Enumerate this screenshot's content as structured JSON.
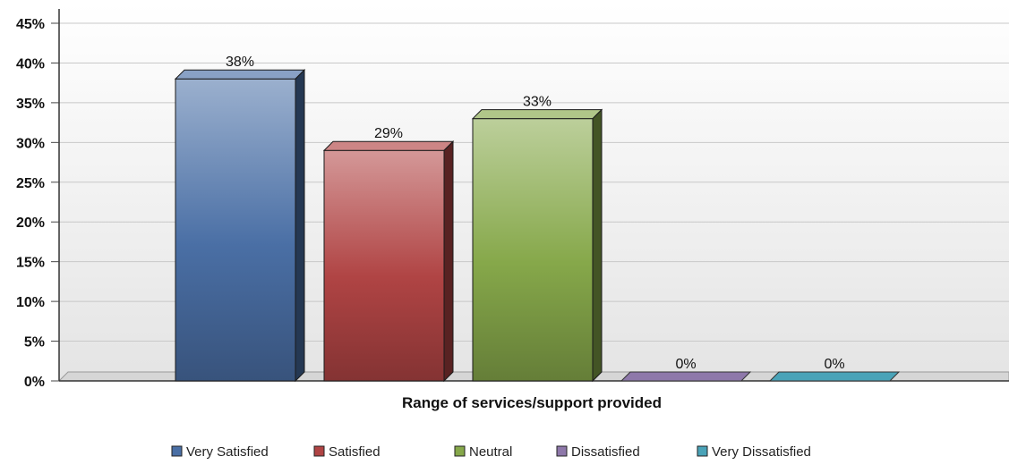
{
  "chart_data": {
    "type": "bar",
    "categories": [
      "Very Satisfied",
      "Satisfied",
      "Neutral",
      "Dissatisfied",
      "Very Dissatisfied"
    ],
    "values": [
      38,
      29,
      33,
      0,
      0
    ],
    "data_labels": [
      "38%",
      "29%",
      "33%",
      "0%",
      "0%"
    ],
    "xlabel": "Range of services/support provided",
    "ylabel": "",
    "ylim": [
      0,
      45
    ],
    "yticks": [
      0,
      5,
      10,
      15,
      20,
      25,
      30,
      35,
      40,
      45
    ],
    "ytick_labels": [
      "0%",
      "5%",
      "10%",
      "15%",
      "20%",
      "25%",
      "30%",
      "35%",
      "40%",
      "45%"
    ],
    "grid": true,
    "legend_position": "bottom",
    "three_d": true,
    "colors": [
      "#4a6fa5",
      "#b04444",
      "#86a84a",
      "#8e78aa",
      "#4aa3b8"
    ]
  }
}
